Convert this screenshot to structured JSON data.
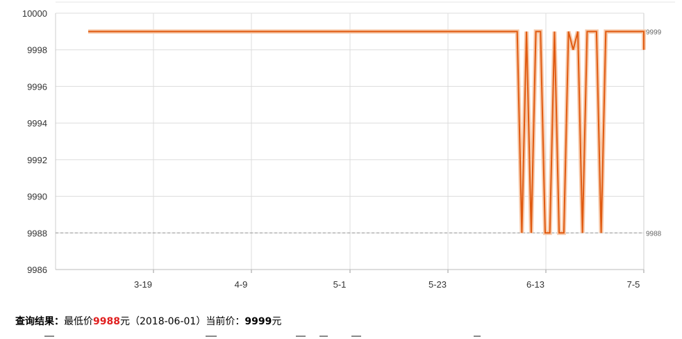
{
  "chart_data": {
    "type": "line",
    "title": "",
    "xlabel": "",
    "ylabel": "",
    "x_tick_labels": [
      "3-19",
      "4-9",
      "5-1",
      "5-23",
      "6-13",
      "7-5"
    ],
    "y_tick_labels": [
      "9986",
      "9988",
      "9990",
      "9992",
      "9994",
      "9996",
      "9998",
      "10000"
    ],
    "ylim": [
      9986,
      10000
    ],
    "grid": true,
    "line_color": "#e05a10",
    "reference_line": {
      "value": 9988,
      "label": "9988",
      "style": "dashed"
    },
    "end_label": "9999",
    "series": [
      {
        "x": [
          "2018-03-05",
          "2018-06-05",
          "2018-06-06",
          "2018-06-07",
          "2018-06-08",
          "2018-06-09",
          "2018-06-10",
          "2018-06-11",
          "2018-06-12",
          "2018-06-13",
          "2018-06-14",
          "2018-06-15",
          "2018-06-16",
          "2018-06-17",
          "2018-06-18",
          "2018-06-19",
          "2018-06-20",
          "2018-06-21",
          "2018-06-22",
          "2018-06-23",
          "2018-06-24",
          "2018-06-25",
          "2018-06-26",
          "2018-06-27",
          "2018-06-28",
          "2018-06-29",
          "2018-06-30",
          "2018-07-01",
          "2018-07-02",
          "2018-07-03",
          "2018-07-04",
          "2018-07-05",
          "2018-07-06"
        ],
        "values": [
          9999,
          9999,
          9988,
          9999,
          9988,
          9999,
          9999,
          9988,
          9988,
          9999,
          9988,
          9988,
          9999,
          9998,
          9999,
          9988,
          9999,
          9999,
          9999,
          9988,
          9999,
          9999,
          9999,
          9999,
          9999,
          9999,
          9999,
          9999,
          9999,
          9999,
          9998,
          9999,
          9999
        ]
      }
    ]
  },
  "result": {
    "label": "查询结果：",
    "lowest_label": "最低价",
    "lowest_value": "9988",
    "currency": "元",
    "lowest_date": "（2018-06-01）",
    "current_label": "当前价：",
    "current_value": "9999",
    "currency2": "元"
  }
}
